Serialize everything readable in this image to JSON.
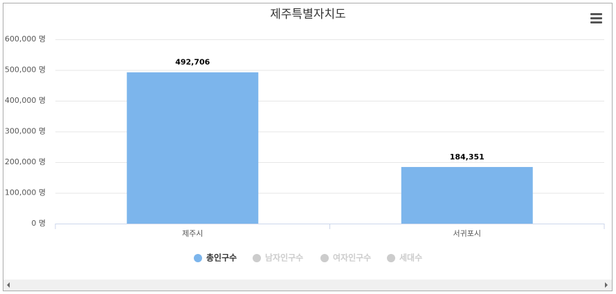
{
  "chart_data": {
    "type": "bar",
    "title": "제주특별자치도",
    "categories": [
      "제주시",
      "서귀포시"
    ],
    "series": [
      {
        "name": "총인구수",
        "color": "#7cb5ec",
        "values": [
          492706,
          184351
        ],
        "value_labels": [
          "492,706",
          "184,351"
        ],
        "visible": true
      },
      {
        "name": "남자인구수",
        "values": [
          null,
          null
        ],
        "visible": false
      },
      {
        "name": "여자인구수",
        "values": [
          null,
          null
        ],
        "visible": false
      },
      {
        "name": "세대수",
        "values": [
          null,
          null
        ],
        "visible": false
      }
    ],
    "ylim": [
      0,
      600000
    ],
    "yticks": [
      {
        "value": 0,
        "label": "0 명"
      },
      {
        "value": 100000,
        "label": "100,000 명"
      },
      {
        "value": 200000,
        "label": "200,000 명"
      },
      {
        "value": 300000,
        "label": "300,000 명"
      },
      {
        "value": 400000,
        "label": "400,000 명"
      },
      {
        "value": 500000,
        "label": "500,000 명"
      },
      {
        "value": 600000,
        "label": "600,000 명"
      }
    ],
    "grid": true
  }
}
